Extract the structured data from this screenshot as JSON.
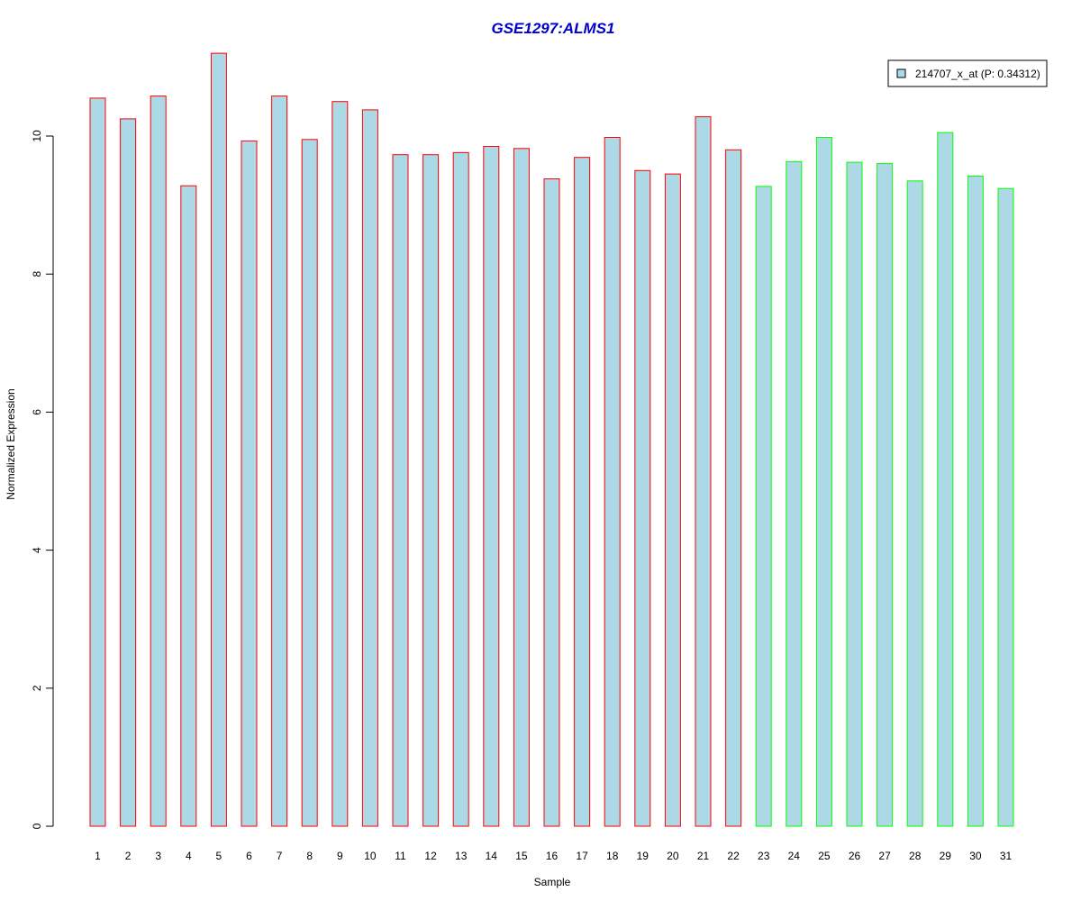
{
  "chart_data": {
    "type": "bar",
    "title": "GSE1297:ALMS1",
    "title_color": "#0000cc",
    "xlabel": "Sample",
    "ylabel": "Normalized Expression",
    "ylim": [
      0,
      11.2
    ],
    "yticks": [
      0,
      2,
      4,
      6,
      8,
      10
    ],
    "grid": false,
    "legend": {
      "position": "top-right",
      "label": "214707_x_at (P: 0.34312)",
      "swatch_color": "#add8e6"
    },
    "bar_fill": "#add8e6",
    "group_colors": {
      "group1": "#ff0000",
      "group2": "#00ff00"
    },
    "categories": [
      "1",
      "2",
      "3",
      "4",
      "5",
      "6",
      "7",
      "8",
      "9",
      "10",
      "11",
      "12",
      "13",
      "14",
      "15",
      "16",
      "17",
      "18",
      "19",
      "20",
      "21",
      "22",
      "23",
      "24",
      "25",
      "26",
      "27",
      "28",
      "29",
      "30",
      "31"
    ],
    "values": [
      10.55,
      10.25,
      10.58,
      9.28,
      11.2,
      9.93,
      10.58,
      9.95,
      10.5,
      10.38,
      9.73,
      9.73,
      9.76,
      9.85,
      9.82,
      9.38,
      9.69,
      9.98,
      9.5,
      9.45,
      10.28,
      9.8,
      9.27,
      9.63,
      9.98,
      9.62,
      9.6,
      9.35,
      10.05,
      9.42,
      9.24
    ],
    "groups": [
      "group1",
      "group1",
      "group1",
      "group1",
      "group1",
      "group1",
      "group1",
      "group1",
      "group1",
      "group1",
      "group1",
      "group1",
      "group1",
      "group1",
      "group1",
      "group1",
      "group1",
      "group1",
      "group1",
      "group1",
      "group1",
      "group1",
      "group2",
      "group2",
      "group2",
      "group2",
      "group2",
      "group2",
      "group2",
      "group2",
      "group2"
    ]
  }
}
